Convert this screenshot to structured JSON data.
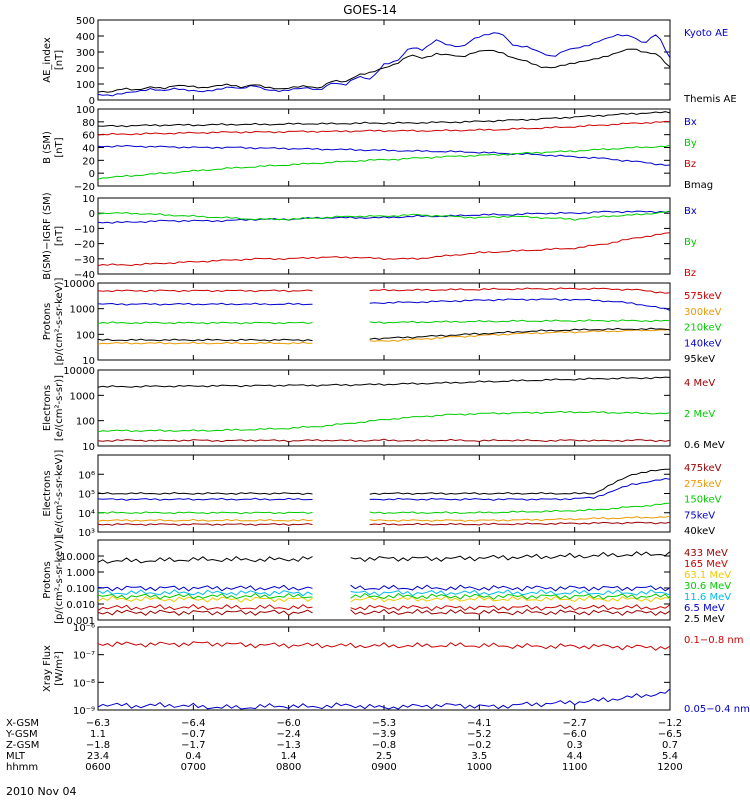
{
  "title": "GOES-14",
  "date": "2010 Nov 04",
  "chart_data": [
    {
      "type": "line",
      "ylabel": [
        "AE_index",
        "[nT]"
      ],
      "yscale": "linear",
      "ylim": [
        0,
        500
      ],
      "yticks": [
        0,
        100,
        200,
        300,
        400,
        500
      ],
      "yticklabels": [
        "0",
        "100",
        "200",
        "300",
        "400",
        "500"
      ],
      "legend": "right",
      "series": [
        {
          "name": "Kyoto AE",
          "color": "#0000cc",
          "values": [
            35,
            30,
            40,
            55,
            70,
            55,
            75,
            60,
            50,
            65,
            80,
            70,
            95,
            60,
            55,
            70,
            75,
            60,
            110,
            90,
            150,
            130,
            220,
            245,
            330,
            310,
            380,
            340,
            330,
            390,
            410,
            420,
            340,
            330,
            300,
            270,
            310,
            330,
            350,
            380,
            410,
            400,
            350,
            420,
            260
          ]
        },
        {
          "name": "Themis AE",
          "color": "#000000",
          "values": [
            55,
            50,
            70,
            65,
            80,
            70,
            95,
            85,
            75,
            90,
            95,
            80,
            100,
            75,
            70,
            80,
            85,
            75,
            120,
            110,
            160,
            170,
            200,
            230,
            280,
            260,
            290,
            280,
            270,
            300,
            310,
            300,
            260,
            240,
            210,
            200,
            220,
            240,
            250,
            270,
            300,
            320,
            300,
            290,
            200
          ]
        }
      ]
    },
    {
      "type": "line",
      "ylabel": [
        "B (SM)",
        "[nT]"
      ],
      "yscale": "linear",
      "ylim": [
        -20,
        100
      ],
      "yticks": [
        -20,
        0,
        20,
        40,
        60,
        80,
        100
      ],
      "yticklabels": [
        "−20",
        "0",
        "20",
        "40",
        "60",
        "80",
        "100"
      ],
      "legend": "right",
      "series": [
        {
          "name": "Bx",
          "color": "#0000cc",
          "values": [
            42,
            42,
            41,
            40,
            40,
            39,
            38,
            37,
            36,
            35,
            34,
            33,
            31,
            29,
            26,
            23,
            18,
            12
          ]
        },
        {
          "name": "By",
          "color": "#00cc00",
          "values": [
            -8,
            -4,
            0,
            4,
            8,
            11,
            14,
            17,
            20,
            22,
            25,
            27,
            29,
            32,
            34,
            37,
            40,
            42
          ]
        },
        {
          "name": "Bz",
          "color": "#cc0000",
          "values": [
            60,
            61,
            62,
            63,
            64,
            64,
            65,
            65,
            66,
            66,
            66,
            67,
            68,
            70,
            72,
            75,
            78,
            80
          ]
        },
        {
          "name": "Bmag",
          "color": "#000000",
          "values": [
            73,
            74,
            75,
            75,
            76,
            76,
            77,
            77,
            78,
            78,
            79,
            80,
            82,
            84,
            87,
            90,
            93,
            95
          ]
        }
      ]
    },
    {
      "type": "line",
      "ylabel": [
        "B(SM)−IGRF (SM)",
        "[nT]"
      ],
      "yscale": "linear",
      "ylim": [
        -40,
        10
      ],
      "yticks": [
        -40,
        -30,
        -20,
        -10,
        0,
        10
      ],
      "yticklabels": [
        "−40",
        "−30",
        "−20",
        "−10",
        "0",
        "10"
      ],
      "legend": "right",
      "series": [
        {
          "name": "Bx",
          "color": "#0000cc",
          "values": [
            -6,
            -6,
            -5,
            -5,
            -5,
            -4,
            -4,
            -3,
            -3,
            -3,
            -2,
            -2,
            -1,
            -1,
            0,
            0,
            1,
            1,
            1
          ]
        },
        {
          "name": "By",
          "color": "#00cc00",
          "values": [
            0,
            0,
            -1,
            -2,
            -3,
            -4,
            -4,
            -3,
            -2,
            -2,
            -1,
            -2,
            -3,
            -2,
            -3,
            -4,
            -2,
            -1,
            1
          ]
        },
        {
          "name": "Bz",
          "color": "#cc0000",
          "values": [
            -34,
            -34,
            -33,
            -32,
            -31,
            -30,
            -30,
            -29,
            -29,
            -30,
            -30,
            -28,
            -26,
            -25,
            -24,
            -23,
            -20,
            -16,
            -13
          ]
        }
      ]
    },
    {
      "type": "line",
      "ylabel": [
        "Protons",
        "[p/(cm²-s-sr-keV)]"
      ],
      "yscale": "log",
      "ylim": [
        10,
        10000
      ],
      "yticks": [
        10,
        100,
        1000,
        10000
      ],
      "yticklabels": [
        "10",
        "100",
        "1000",
        "10000"
      ],
      "legend": "right",
      "series": [
        {
          "name": "575keV",
          "color": "#cc0000",
          "values": [
            5000,
            5000,
            5000,
            5000,
            5000,
            5000,
            5000,
            5100,
            5200,
            5300,
            5500,
            5700,
            5900,
            6000,
            6000,
            5500,
            4000
          ]
        },
        {
          "name": "300keV",
          "color": "#ee9900",
          "values": [
            45,
            45,
            45,
            45,
            45,
            45,
            45,
            50,
            55,
            65,
            80,
            95,
            110,
            120,
            130,
            140,
            150
          ]
        },
        {
          "name": "210keV",
          "color": "#00cc00",
          "values": [
            280,
            280,
            280,
            280,
            280,
            280,
            280,
            285,
            290,
            300,
            310,
            320,
            330,
            335,
            340,
            340,
            330
          ]
        },
        {
          "name": "140keV",
          "color": "#0000cc",
          "values": [
            1500,
            1500,
            1500,
            1500,
            1500,
            1500,
            1500,
            1600,
            1700,
            1800,
            2000,
            2200,
            2300,
            2300,
            2100,
            1600,
            900
          ]
        },
        {
          "name": "95keV",
          "color": "#000000",
          "values": [
            60,
            60,
            60,
            60,
            60,
            60,
            60,
            65,
            70,
            80,
            95,
            110,
            130,
            145,
            155,
            160,
            160
          ]
        }
      ]
    },
    {
      "type": "line",
      "ylabel": [
        "Electrons",
        "[e/(cm²-s-sr)]"
      ],
      "yscale": "log",
      "ylim": [
        10,
        10000
      ],
      "yticks": [
        10,
        100,
        1000,
        10000
      ],
      "yticklabels": [
        "10",
        "100",
        "1000",
        "10000"
      ],
      "legend": "right",
      "series": [
        {
          "name": "4 MeV",
          "color": "#990000",
          "values": [
            16,
            17,
            16,
            17,
            16,
            17,
            16,
            17,
            16,
            17,
            16,
            17,
            16,
            17,
            16,
            17,
            16,
            17,
            16
          ]
        },
        {
          "name": "2 MeV",
          "color": "#00cc00",
          "values": [
            40,
            40,
            40,
            40,
            42,
            45,
            50,
            60,
            80,
            110,
            140,
            170,
            190,
            200,
            210,
            220,
            210,
            200,
            190
          ]
        },
        {
          "name": "0.6 MeV",
          "color": "#000000",
          "values": [
            2200,
            2200,
            2300,
            2300,
            2400,
            2400,
            2500,
            2500,
            2600,
            2700,
            2900,
            3100,
            3400,
            3700,
            4000,
            4300,
            4600,
            4800,
            5000
          ]
        }
      ]
    },
    {
      "type": "line",
      "ylabel": [
        "Electrons",
        "[e/(cm²-s-sr-keV)]"
      ],
      "yscale": "log",
      "ylim": [
        1000,
        10000000
      ],
      "yticks": [
        1000,
        10000,
        100000,
        1000000
      ],
      "yticklabels": [
        "10³",
        "10⁴",
        "10⁵",
        "10⁶"
      ],
      "legend": "right",
      "series": [
        {
          "name": "475keV",
          "color": "#990000",
          "values": [
            2500,
            2500,
            2500,
            2500,
            2500,
            2500,
            2500,
            2500,
            2500,
            2500,
            2500,
            2600,
            2700,
            2900,
            3000,
            3000
          ]
        },
        {
          "name": "275keV",
          "color": "#ee9900",
          "values": [
            4000,
            4000,
            4000,
            4000,
            4000,
            4000,
            4000,
            4000,
            4000,
            4000,
            4000,
            4200,
            4500,
            5000,
            5500,
            6000
          ]
        },
        {
          "name": "150keV",
          "color": "#00cc00",
          "values": [
            10000,
            10000,
            10000,
            10000,
            10000,
            10000,
            10000,
            10000,
            10000,
            10000,
            10000,
            11000,
            12000,
            14000,
            20000,
            30000
          ]
        },
        {
          "name": "75keV",
          "color": "#0000cc",
          "values": [
            50000,
            50000,
            50000,
            50000,
            50000,
            50000,
            50000,
            50000,
            50000,
            50000,
            50000,
            50000,
            50000,
            60000,
            300000,
            600000
          ]
        },
        {
          "name": "40keV",
          "color": "#000000",
          "values": [
            100000,
            100000,
            100000,
            100000,
            100000,
            100000,
            100000,
            100000,
            100000,
            100000,
            100000,
            100000,
            100000,
            100000,
            1000000,
            2000000
          ]
        }
      ]
    },
    {
      "type": "line",
      "ylabel": [
        "Protons",
        "[p/(cm²-s-sr-keV)]"
      ],
      "yscale": "log",
      "ylim": [
        0.001,
        100
      ],
      "yticks": [
        0.001,
        0.01,
        0.1,
        1,
        10
      ],
      "yticklabels": [
        "0.001",
        "0.010",
        "0.100",
        "1.000",
        "10.000"
      ],
      "legend": "right",
      "series": [
        {
          "name": "433 MeV",
          "color": "#990000",
          "values": [
            0.003,
            0.003,
            0.003,
            0.003,
            0.003,
            0.003,
            0.003,
            0.003,
            0.003,
            0.003,
            0.003,
            0.003,
            0.003,
            0.003
          ]
        },
        {
          "name": "165 MeV",
          "color": "#cc0000",
          "values": [
            0.006,
            0.006,
            0.006,
            0.006,
            0.006,
            0.006,
            0.006,
            0.006,
            0.006,
            0.006,
            0.006,
            0.006,
            0.006,
            0.006
          ]
        },
        {
          "name": "63.1 MeV",
          "color": "#eecc00",
          "values": [
            0.02,
            0.02,
            0.02,
            0.02,
            0.02,
            0.02,
            0.02,
            0.02,
            0.02,
            0.02,
            0.02,
            0.02,
            0.02,
            0.02
          ]
        },
        {
          "name": "30.6 MeV",
          "color": "#00cc00",
          "values": [
            0.03,
            0.03,
            0.03,
            0.03,
            0.03,
            0.03,
            0.03,
            0.03,
            0.03,
            0.03,
            0.03,
            0.03,
            0.03,
            0.03
          ]
        },
        {
          "name": "11.6 MeV",
          "color": "#00bbee",
          "values": [
            0.05,
            0.05,
            0.05,
            0.05,
            0.05,
            0.05,
            0.05,
            0.05,
            0.05,
            0.05,
            0.05,
            0.05,
            0.05,
            0.05
          ]
        },
        {
          "name": "6.5 MeV",
          "color": "#0000cc",
          "values": [
            0.1,
            0.1,
            0.1,
            0.1,
            0.1,
            0.1,
            0.1,
            0.1,
            0.1,
            0.1,
            0.1,
            0.1,
            0.1,
            0.1
          ]
        },
        {
          "name": "2.5 MeV",
          "color": "#000000",
          "values": [
            5,
            5,
            6,
            6,
            6,
            7,
            7,
            7,
            7,
            8,
            9,
            10,
            12,
            14
          ]
        }
      ]
    },
    {
      "type": "line",
      "ylabel": [
        "Xray Flux",
        "[W/m²]"
      ],
      "yscale": "log",
      "ylim": [
        1e-09,
        1e-06
      ],
      "yticks": [
        1e-09,
        1e-08,
        1e-07,
        1e-06
      ],
      "yticklabels": [
        "10⁻⁹",
        "10⁻⁸",
        "10⁻⁷",
        "10⁻⁶"
      ],
      "legend": "right",
      "series": [
        {
          "name": "0.1−0.8 nm",
          "color": "#cc0000",
          "values": [
            2.5e-07,
            2.4e-07,
            2.4e-07,
            2.6e-07,
            2.3e-07,
            2.2e-07,
            2.2e-07,
            2.1e-07,
            2.1e-07,
            2.1e-07,
            2.2e-07,
            2.1e-07,
            2e-07,
            2e-07,
            2e-07,
            1.9e-07,
            1.8e-07
          ]
        },
        {
          "name": "0.05−0.4 nm",
          "color": "#0000cc",
          "values": [
            1.6e-09,
            1.4e-09,
            1.5e-09,
            1.3e-09,
            1.2e-09,
            1.4e-09,
            1.3e-09,
            1.5e-09,
            1.2e-09,
            1.4e-09,
            1.5e-09,
            1.3e-09,
            1.6e-09,
            1.8e-09,
            2.2e-09,
            3e-09,
            4.5e-09
          ]
        }
      ]
    }
  ],
  "xaxis": {
    "rows": [
      {
        "label": "X-GSM",
        "values": [
          "−6.3",
          "−6.4",
          "−6.0",
          "−5.3",
          "−4.1",
          "−2.7",
          "−1.2"
        ]
      },
      {
        "label": "Y-GSM",
        "values": [
          "1.1",
          "−0.7",
          "−2.4",
          "−3.9",
          "−5.2",
          "−6.0",
          "−6.5"
        ]
      },
      {
        "label": "Z-GSM",
        "values": [
          "−1.8",
          "−1.7",
          "−1.3",
          "−0.8",
          "−0.2",
          "0.3",
          "0.7"
        ]
      },
      {
        "label": "MLT",
        "values": [
          "23.4",
          "0.4",
          "1.4",
          "2.5",
          "3.5",
          "4.4",
          "5.4"
        ]
      },
      {
        "label": "hhmm",
        "values": [
          "0600",
          "0700",
          "0800",
          "0900",
          "1000",
          "1100",
          "1200"
        ]
      }
    ]
  }
}
